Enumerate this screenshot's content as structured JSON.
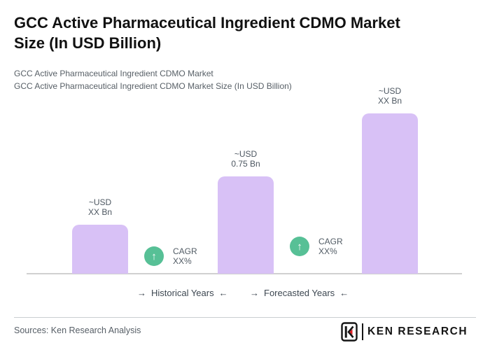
{
  "header": {
    "title_line1": "GCC Active Pharmaceutical Ingredient CDMO Market",
    "title_line2": "Size (In USD Billion)",
    "subtitle_line1": "GCC Active Pharmaceutical Ingredient CDMO Market",
    "subtitle_line2": "GCC Active Pharmaceutical Ingredient CDMO Market Size (In USD Billion)"
  },
  "chart_data": {
    "type": "bar",
    "title": "GCC Active Pharmaceutical Ingredient CDMO Market Size (In USD Billion)",
    "unit": "USD Billion",
    "grid": false,
    "ylim": [
      0,
      1.3
    ],
    "bars": [
      {
        "period": "historical",
        "label_line1": "~USD",
        "label_line2": "XX Bn",
        "value": 0.38,
        "value_masked": true
      },
      {
        "period": "base",
        "label_line1": "~USD",
        "label_line2": "0.75 Bn",
        "value": 0.75,
        "value_masked": false
      },
      {
        "period": "forecast",
        "label_line1": "~USD",
        "label_line2": "XX Bn",
        "value": 1.24,
        "value_masked": true
      }
    ],
    "cagr_badges": [
      {
        "line1": "CAGR",
        "line2": "XX%"
      },
      {
        "line1": "CAGR",
        "line2": "XX%"
      }
    ],
    "x_period_labels": [
      "Historical Years",
      "Forecasted Years"
    ],
    "bar_color": "#d8c1f6",
    "badge_color": "#57c096",
    "axis_color": "#d0d0d0"
  },
  "icons": {
    "up_arrow_icon": "↑",
    "right_arrow_icon": "→",
    "left_arrow_icon": "←"
  },
  "footer": {
    "sources": "Sources: Ken Research Analysis",
    "brand": "KEN RESEARCH"
  },
  "colors": {
    "title": "#111111",
    "subtitle_gray": "#575f66",
    "label_gray": "#4d5761",
    "logo_red": "#e01f26",
    "logo_black": "#151515"
  }
}
